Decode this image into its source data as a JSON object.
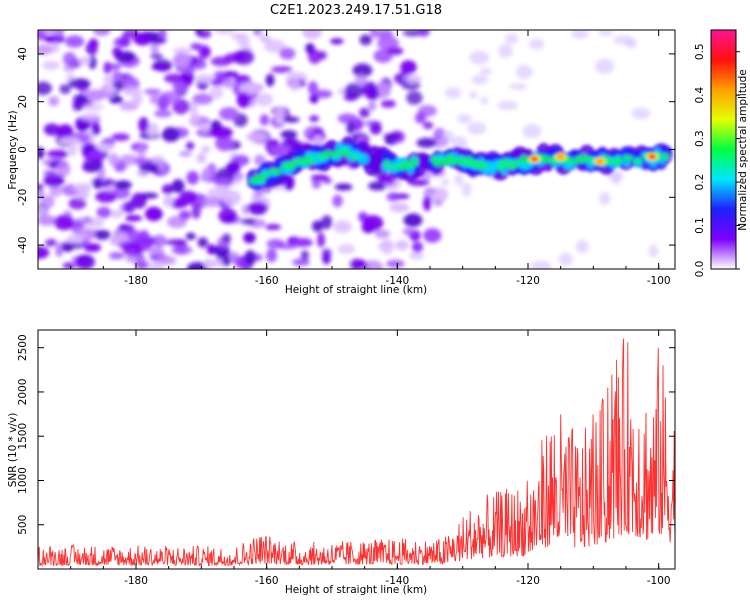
{
  "chart_data": [
    {
      "type": "heatmap",
      "title": "C2E1.2023.249.17.51.G18",
      "xlabel": "Height of straight line (km)",
      "ylabel": "Frequency (Hz)",
      "xlim": [
        -195,
        -97.5
      ],
      "ylim": [
        -50,
        50
      ],
      "xticks": [
        -180,
        -160,
        -140,
        -120,
        -100
      ],
      "yticks": [
        -40,
        -20,
        0,
        20,
        40
      ],
      "colorbar": {
        "label": "Normalized spectral amplitude",
        "range": [
          0.0,
          0.55
        ],
        "ticks": [
          "0.0",
          "0.1",
          "0.2",
          "0.3",
          "0.4",
          "0.5"
        ],
        "colors": [
          "#ffffff",
          "#7c00ff",
          "#2020ff",
          "#00e5ff",
          "#00ff40",
          "#e5ff00",
          "#ffa000",
          "#ff1010",
          "#ff1493"
        ]
      },
      "band": {
        "points": [
          {
            "x": -162,
            "y": -13
          },
          {
            "x": -155,
            "y": -5
          },
          {
            "x": -148,
            "y": -1
          },
          {
            "x": -140,
            "y": -7
          },
          {
            "x": -132,
            "y": -4
          },
          {
            "x": -125,
            "y": -7
          },
          {
            "x": -118,
            "y": -4
          },
          {
            "x": -110,
            "y": -5
          },
          {
            "x": -104,
            "y": -4
          },
          {
            "x": -98.5,
            "y": -3
          }
        ],
        "hotspots": [
          {
            "x": -119,
            "y": -4,
            "level": 0.5
          },
          {
            "x": -115,
            "y": -3,
            "level": 0.42
          },
          {
            "x": -101,
            "y": -3,
            "level": 0.55
          },
          {
            "x": -109,
            "y": -5,
            "level": 0.35
          }
        ]
      }
    },
    {
      "type": "line",
      "xlabel": "Height of straight line (km)",
      "ylabel": "SNR (10 * v/v)",
      "xlim": [
        -195,
        -97.5
      ],
      "ylim": [
        0,
        2700
      ],
      "xticks": [
        -180,
        -160,
        -140,
        -120,
        -100
      ],
      "yticks": [
        500,
        1000,
        1500,
        2000,
        2500
      ],
      "color": "#ff3030",
      "envelope": [
        {
          "x": -195,
          "y": 280
        },
        {
          "x": -165,
          "y": 260
        },
        {
          "x": -161,
          "y": 420
        },
        {
          "x": -155,
          "y": 300
        },
        {
          "x": -140,
          "y": 350
        },
        {
          "x": -133,
          "y": 350
        },
        {
          "x": -128,
          "y": 800
        },
        {
          "x": -120,
          "y": 1000
        },
        {
          "x": -116,
          "y": 1900
        },
        {
          "x": -112,
          "y": 1500
        },
        {
          "x": -108,
          "y": 2000
        },
        {
          "x": -105,
          "y": 2700
        },
        {
          "x": -101,
          "y": 2000
        },
        {
          "x": -100,
          "y": 2600
        },
        {
          "x": -98,
          "y": 1900
        }
      ]
    }
  ]
}
